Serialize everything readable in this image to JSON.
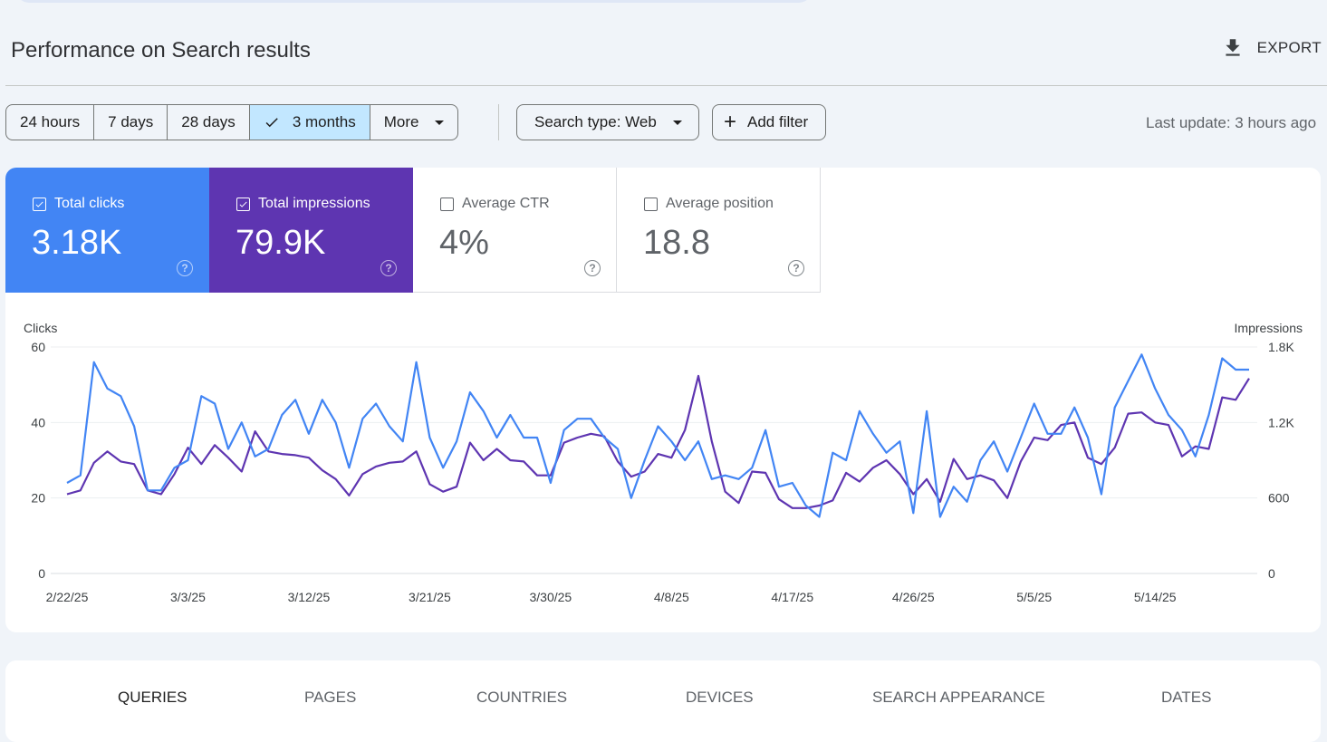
{
  "header": {
    "title": "Performance on Search results",
    "export_label": "EXPORT",
    "export_icon": "download-icon"
  },
  "filters": {
    "ranges": [
      "24 hours",
      "7 days",
      "28 days",
      "3 months",
      "More"
    ],
    "selected_range": "3 months",
    "search_type": "Search type: Web",
    "add_filter": "Add filter",
    "last_update": "Last update: 3 hours ago"
  },
  "metrics": {
    "clicks": {
      "label": "Total clicks",
      "value": "3.18K",
      "checked": true,
      "color": "#4285f4"
    },
    "impressions": {
      "label": "Total impressions",
      "value": "79.9K",
      "checked": true,
      "color": "#5e35b1"
    },
    "ctr": {
      "label": "Average CTR",
      "value": "4%",
      "checked": false
    },
    "position": {
      "label": "Average position",
      "value": "18.8",
      "checked": false
    }
  },
  "chart_data": {
    "type": "line",
    "left_axis": {
      "label": "Clicks",
      "ticks": [
        "0",
        "20",
        "40",
        "60"
      ],
      "range": [
        0,
        60
      ]
    },
    "right_axis": {
      "label": "Impressions",
      "ticks": [
        "0",
        "600",
        "1.2K",
        "1.8K"
      ],
      "range": [
        0,
        1800
      ]
    },
    "x_ticks": [
      "2/22/25",
      "3/3/25",
      "3/12/25",
      "3/21/25",
      "3/30/25",
      "4/8/25",
      "4/17/25",
      "4/26/25",
      "5/5/25",
      "5/14/25"
    ],
    "x_start": "2025-02-22",
    "grid": true,
    "series": [
      {
        "name": "Total clicks",
        "axis": "left",
        "color": "#4285f4",
        "values": [
          24,
          26,
          56,
          49,
          47,
          39,
          22,
          22,
          28,
          30,
          47,
          45,
          33,
          40,
          31,
          33,
          42,
          46,
          37,
          46,
          40,
          28,
          41,
          45,
          39,
          35,
          56,
          36,
          28,
          35,
          48,
          43,
          36,
          42,
          36,
          36,
          24,
          38,
          41,
          41,
          36,
          33,
          20,
          30,
          39,
          35,
          30,
          35,
          25,
          26,
          25,
          28,
          38,
          23,
          24,
          18,
          15,
          32,
          30,
          43,
          37,
          32,
          35,
          16,
          43,
          15,
          23,
          19,
          30,
          35,
          27,
          36,
          45,
          37,
          37,
          44,
          36,
          21,
          44,
          51,
          58,
          49,
          42,
          38,
          31,
          42,
          57,
          54,
          54
        ]
      },
      {
        "name": "Total impressions",
        "axis": "right",
        "color": "#5e35b1",
        "values": [
          630,
          660,
          880,
          970,
          890,
          870,
          660,
          630,
          790,
          1000,
          870,
          1020,
          920,
          810,
          1130,
          970,
          950,
          940,
          920,
          820,
          750,
          620,
          790,
          850,
          880,
          890,
          970,
          710,
          650,
          690,
          1040,
          900,
          990,
          900,
          890,
          780,
          780,
          1040,
          1080,
          1110,
          1090,
          890,
          770,
          810,
          950,
          920,
          1140,
          1570,
          1050,
          650,
          560,
          810,
          800,
          590,
          520,
          520,
          540,
          580,
          800,
          730,
          840,
          900,
          790,
          630,
          750,
          570,
          910,
          750,
          780,
          740,
          600,
          890,
          1080,
          1060,
          1180,
          1200,
          920,
          870,
          1000,
          1270,
          1280,
          1200,
          1180,
          930,
          1010,
          990,
          1400,
          1380,
          1550
        ]
      }
    ]
  },
  "tabs": {
    "items": [
      "QUERIES",
      "PAGES",
      "COUNTRIES",
      "DEVICES",
      "SEARCH APPEARANCE",
      "DATES"
    ],
    "active": "QUERIES"
  }
}
